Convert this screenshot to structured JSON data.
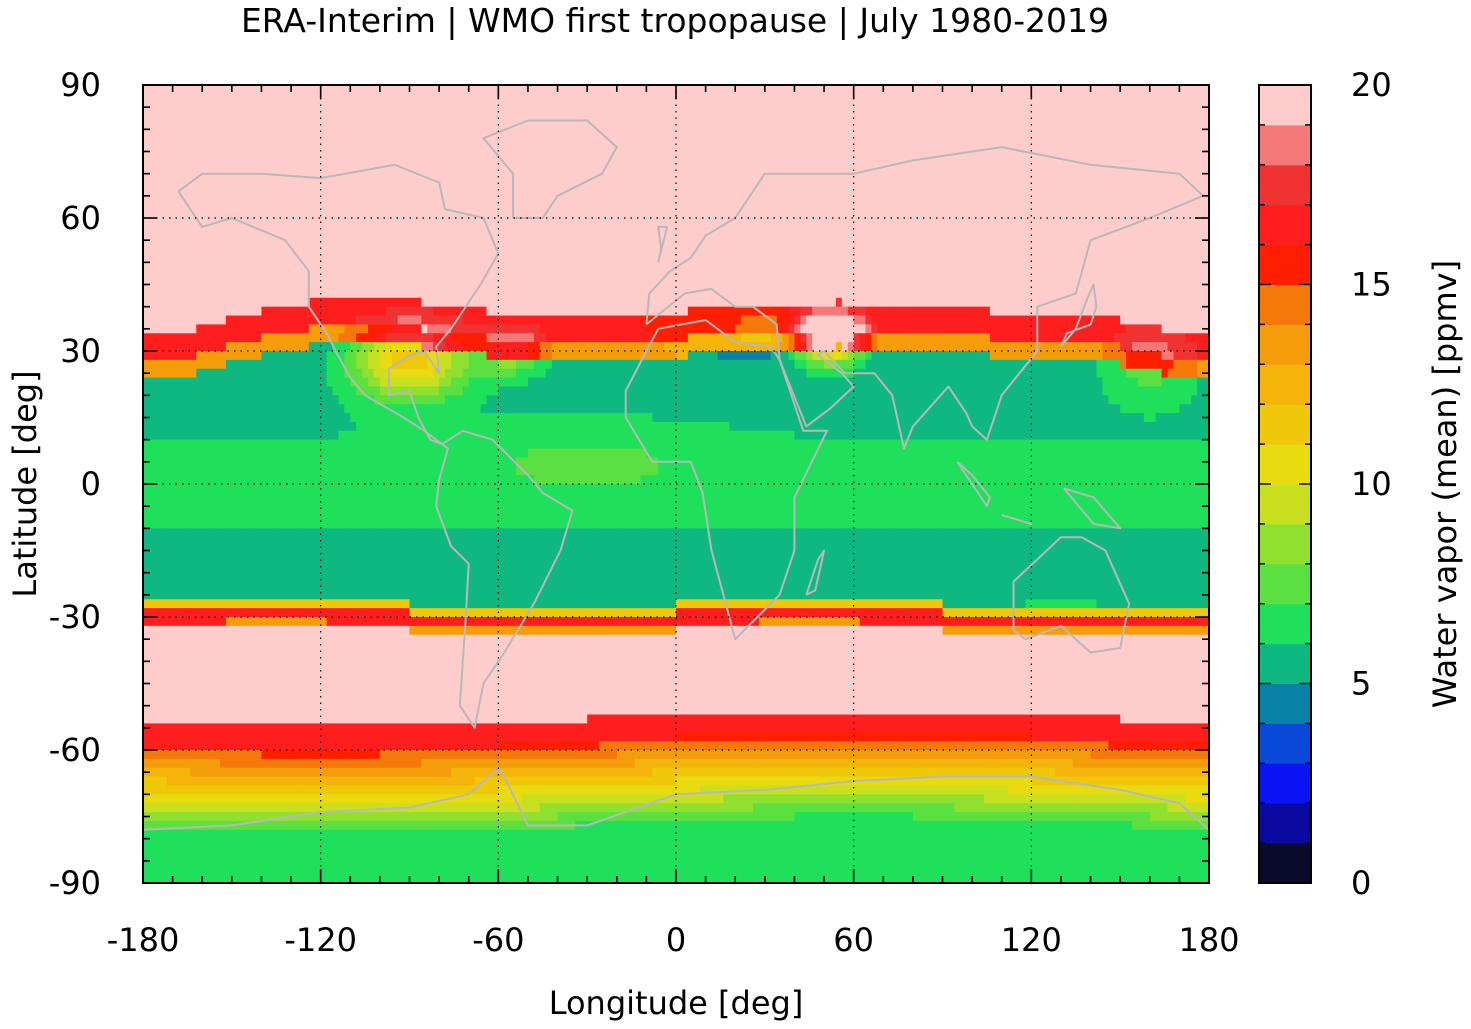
{
  "chart_data": {
    "type": "heatmap",
    "title": "ERA-Interim | WMO first tropopause | July 1980-2019",
    "xlabel": "Longitude [deg]",
    "ylabel": "Latitude [deg]",
    "xlim": [
      -180,
      180
    ],
    "ylim": [
      -90,
      90
    ],
    "x_ticks": [
      -180,
      -120,
      -60,
      0,
      60,
      120,
      180
    ],
    "x_tick_labels": [
      "-180",
      "-120",
      "-60",
      "0",
      "60",
      "120",
      "180"
    ],
    "y_ticks": [
      90,
      60,
      30,
      0,
      -30,
      -60,
      -90
    ],
    "y_tick_labels": [
      "90",
      "60",
      "30",
      "0",
      "-30",
      "-60",
      "-90"
    ],
    "grid": true,
    "coastlines": true,
    "colorbar": {
      "label": "Water vapor (mean) [ppmv]",
      "range": [
        0,
        20
      ],
      "ticks": [
        0,
        5,
        10,
        15,
        20
      ],
      "tick_labels": [
        "0",
        "5",
        "10",
        "15",
        "20"
      ],
      "levels": [
        {
          "from": 0,
          "to": 1,
          "color": "#0a0a2a"
        },
        {
          "from": 1,
          "to": 2,
          "color": "#0a0aa0"
        },
        {
          "from": 2,
          "to": 3,
          "color": "#0a14f5"
        },
        {
          "from": 3,
          "to": 4,
          "color": "#0a4ad8"
        },
        {
          "from": 4,
          "to": 5,
          "color": "#0a82a8"
        },
        {
          "from": 5,
          "to": 6,
          "color": "#0fb880"
        },
        {
          "from": 6,
          "to": 7,
          "color": "#1ee05a"
        },
        {
          "from": 7,
          "to": 8,
          "color": "#5ae040"
        },
        {
          "from": 8,
          "to": 9,
          "color": "#90e030"
        },
        {
          "from": 9,
          "to": 10,
          "color": "#c8e020"
        },
        {
          "from": 10,
          "to": 11,
          "color": "#e8dc10"
        },
        {
          "from": 11,
          "to": 12,
          "color": "#f0c80a"
        },
        {
          "from": 12,
          "to": 13,
          "color": "#f5b40a"
        },
        {
          "from": 13,
          "to": 14,
          "color": "#f59c0a"
        },
        {
          "from": 14,
          "to": 15,
          "color": "#f5780a"
        },
        {
          "from": 15,
          "to": 16,
          "color": "#ff1e00"
        },
        {
          "from": 16,
          "to": 17,
          "color": "#ff1e1e"
        },
        {
          "from": 17,
          "to": 18,
          "color": "#f03232"
        },
        {
          "from": 18,
          "to": 19,
          "color": "#f57878"
        },
        {
          "from": 19,
          "to": 20,
          "color": "#ffcccc"
        }
      ]
    },
    "field_summary": {
      "north_polar_high_lat_min": 40,
      "subtropical_boundary_lat": -30,
      "southern_band_lat": [
        -58,
        -50
      ],
      "notable_features": [
        "Asian monsoon anticyclone maximum",
        "North American monsoon maximum"
      ]
    }
  }
}
